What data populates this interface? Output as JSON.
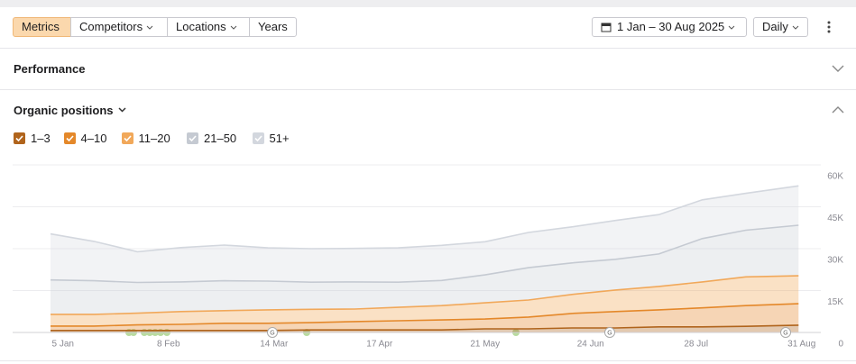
{
  "toolbar": {
    "tabs": [
      "Metrics",
      "Competitors",
      "Locations",
      "Years"
    ],
    "date_range": "1 Jan – 30 Aug 2025",
    "granularity": "Daily"
  },
  "sections": {
    "performance": "Performance",
    "organic": "Organic positions"
  },
  "chart_data": {
    "type": "stacked_area",
    "x": [
      "1 Jan",
      "15 Jan",
      "29 Jan",
      "12 Feb",
      "26 Feb",
      "12 Mar",
      "26 Mar",
      "9 Apr",
      "23 Apr",
      "7 May",
      "21 May",
      "4 Jun",
      "18 Jun",
      "2 Jul",
      "16 Jul",
      "30 Jul",
      "13 Aug",
      "30 Aug"
    ],
    "series": [
      {
        "name": "1–3",
        "color": "#b0641c",
        "values": [
          700,
          700,
          700,
          700,
          700,
          700,
          900,
          900,
          900,
          900,
          1300,
          1300,
          1600,
          1600,
          2000,
          2000,
          2200,
          2600
        ]
      },
      {
        "name": "4–10",
        "color": "#e4882a",
        "values": [
          1600,
          1600,
          2000,
          2200,
          2600,
          2600,
          2600,
          3000,
          3300,
          3600,
          3500,
          4200,
          5200,
          5900,
          6100,
          6800,
          7400,
          7700
        ]
      },
      {
        "name": "11–20",
        "color": "#f1a85a",
        "values": [
          4200,
          4200,
          4200,
          4600,
          4500,
          4800,
          4800,
          4500,
          4800,
          5100,
          5800,
          6100,
          6800,
          7700,
          8400,
          9300,
          10300,
          10000
        ]
      },
      {
        "name": "21–50",
        "color": "#c5cad2",
        "values": [
          12300,
          12000,
          11000,
          10600,
          10700,
          10300,
          9700,
          9700,
          9000,
          9000,
          10000,
          11600,
          11300,
          11000,
          11600,
          15500,
          16700,
          18100
        ]
      },
      {
        "name": "51+",
        "color": "#d3d7de",
        "values": [
          16500,
          14100,
          11000,
          12300,
          12800,
          11900,
          12000,
          12000,
          12300,
          12600,
          11900,
          12600,
          12900,
          13900,
          14100,
          13900,
          13200,
          14100
        ]
      }
    ],
    "xticks": [
      "5 Jan",
      "8 Feb",
      "14 Mar",
      "17 Apr",
      "21 May",
      "24 Jun",
      "28 Jul",
      "31 Aug"
    ],
    "ylim": [
      0,
      60000
    ],
    "yticks": [
      0,
      {
        "value": 15000,
        "label": "15K"
      },
      {
        "value": 30000,
        "label": "30K"
      },
      {
        "value": 45000,
        "label": "45K"
      },
      {
        "value": 60000,
        "label": "60K"
      }
    ],
    "grid": true,
    "update_marker": "G"
  }
}
